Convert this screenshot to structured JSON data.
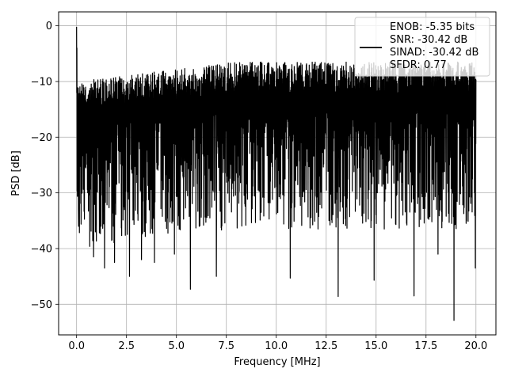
{
  "chart_data": {
    "type": "line",
    "title": "",
    "xlabel": "Frequency [MHz]",
    "ylabel": "PSD [dB]",
    "xlim": [
      -0.9,
      21.0
    ],
    "ylim": [
      -55.5,
      2.5
    ],
    "xticks": [
      0.0,
      2.5,
      5.0,
      7.5,
      10.0,
      12.5,
      15.0,
      17.5,
      20.0
    ],
    "xtick_labels": [
      "0.0",
      "2.5",
      "5.0",
      "7.5",
      "10.0",
      "12.5",
      "15.0",
      "17.5",
      "20.0"
    ],
    "yticks": [
      0,
      -10,
      -20,
      -30,
      -40,
      -50
    ],
    "ytick_labels": [
      "0",
      "−10",
      "−20",
      "−30",
      "−40",
      "−50"
    ],
    "grid": true,
    "legend_position": "top-right",
    "series": [
      {
        "color": "#000000",
        "description": "Dense noise-like PSD spectrum from 0 to 20 MHz, peak near 0 dB at DC, upper envelope around -7 dB, lower spikes down to about -53 dB",
        "x_range": [
          0.0,
          20.0
        ],
        "upper_envelope_db": -6.5,
        "dc_peak": {
          "x": 0.0,
          "y": -0.2
        },
        "deep_minima": [
          {
            "x": 0.1,
            "y": -36.0
          },
          {
            "x": 0.85,
            "y": -41.5
          },
          {
            "x": 1.4,
            "y": -43.5
          },
          {
            "x": 1.9,
            "y": -42.5
          },
          {
            "x": 2.65,
            "y": -45.0
          },
          {
            "x": 3.25,
            "y": -42.0
          },
          {
            "x": 3.9,
            "y": -42.5
          },
          {
            "x": 4.9,
            "y": -41.0
          },
          {
            "x": 5.7,
            "y": -47.3
          },
          {
            "x": 7.0,
            "y": -45.0
          },
          {
            "x": 10.7,
            "y": -45.3
          },
          {
            "x": 13.1,
            "y": -48.6
          },
          {
            "x": 14.9,
            "y": -45.7
          },
          {
            "x": 16.9,
            "y": -48.5
          },
          {
            "x": 18.1,
            "y": -41.0
          },
          {
            "x": 18.9,
            "y": -52.9
          },
          {
            "x": 19.97,
            "y": -43.5
          }
        ]
      }
    ],
    "legend": {
      "entries": [
        "ENOB: -5.35 bits",
        "SNR: -30.42 dB",
        "SINAD: -30.42 dB",
        "SFDR: 0.77"
      ]
    }
  }
}
